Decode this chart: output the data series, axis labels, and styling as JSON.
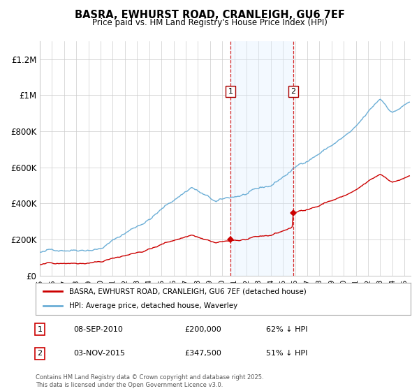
{
  "title": "BASRA, EWHURST ROAD, CRANLEIGH, GU6 7EF",
  "subtitle": "Price paid vs. HM Land Registry's House Price Index (HPI)",
  "ylim": [
    0,
    1300000
  ],
  "xlim_start": 1995.0,
  "xlim_end": 2025.5,
  "yticks": [
    0,
    200000,
    400000,
    600000,
    800000,
    1000000,
    1200000
  ],
  "ytick_labels": [
    "£0",
    "£200K",
    "£400K",
    "£600K",
    "£800K",
    "£1M",
    "£1.2M"
  ],
  "sale1_date": 2010.69,
  "sale1_price": 200000,
  "sale1_label": "1",
  "sale2_date": 2015.84,
  "sale2_price": 347500,
  "sale2_label": "2",
  "legend_line1": "BASRA, EWHURST ROAD, CRANLEIGH, GU6 7EF (detached house)",
  "legend_line2": "HPI: Average price, detached house, Waverley",
  "footnote": "Contains HM Land Registry data © Crown copyright and database right 2025.\nThis data is licensed under the Open Government Licence v3.0.",
  "line_color_red": "#cc0000",
  "line_color_blue": "#6baed6",
  "shade_color": "#ddeeff",
  "vline_color": "#cc0000",
  "background_color": "#ffffff",
  "grid_color": "#cccccc"
}
